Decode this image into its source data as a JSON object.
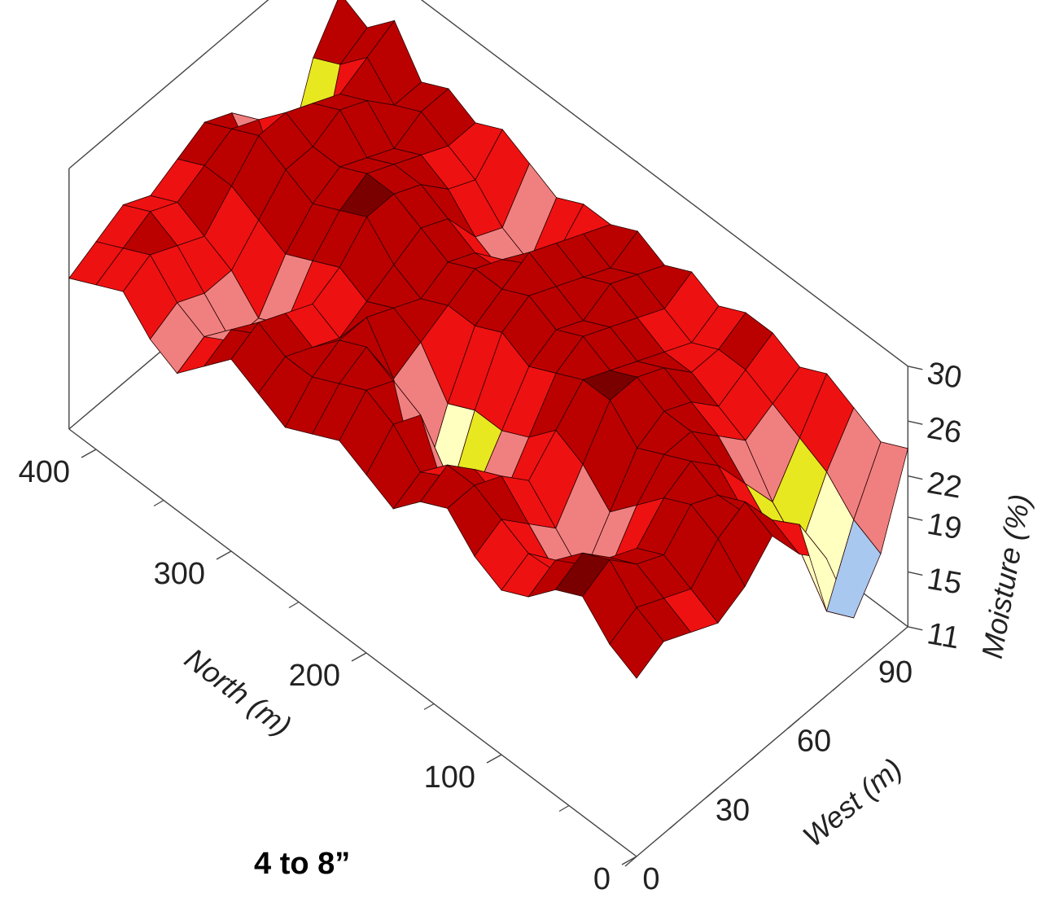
{
  "chart_data": {
    "type": "surface3d",
    "xlabel": "North (m)",
    "ylabel": "West (m)",
    "zlabel": "Moisture (%)",
    "x_ticks": [
      0,
      100,
      200,
      300,
      400
    ],
    "y_ticks": [
      0,
      30,
      60,
      90
    ],
    "z_ticks": [
      11,
      15,
      19,
      22,
      26,
      30
    ],
    "xlim": [
      0,
      420
    ],
    "ylim": [
      0,
      100
    ],
    "zlim": [
      11,
      30
    ],
    "colormap": [
      {
        "max": 15,
        "color": "#4040e0"
      },
      {
        "max": 17,
        "color": "#a8c8f0"
      },
      {
        "max": 19,
        "color": "#ffffc0"
      },
      {
        "max": 20.5,
        "color": "#e8e820"
      },
      {
        "max": 22,
        "color": "#f08080"
      },
      {
        "max": 24,
        "color": "#ee1111"
      },
      {
        "max": 26.5,
        "color": "#bb0000"
      },
      {
        "max": 30,
        "color": "#7a0000"
      }
    ],
    "grid_north": [
      0,
      20,
      40,
      60,
      80,
      100,
      120,
      140,
      160,
      180,
      200,
      220,
      240,
      260,
      280,
      300,
      320,
      340,
      360,
      380,
      400,
      420
    ],
    "grid_west": [
      0,
      10,
      20,
      30,
      40,
      50,
      60,
      70,
      80,
      90,
      100
    ],
    "moisture": [
      [
        24,
        25,
        24,
        23,
        24,
        26,
        23,
        21,
        15,
        18,
        24
      ],
      [
        25,
        26,
        25,
        24,
        26,
        27,
        24,
        22,
        14,
        19,
        23
      ],
      [
        27,
        28,
        26,
        25,
        27,
        26,
        23,
        20,
        17,
        21,
        24
      ],
      [
        26,
        27,
        25,
        24,
        26,
        27,
        25,
        22,
        19,
        22,
        25
      ],
      [
        24,
        25,
        23,
        21,
        24,
        26,
        26,
        24,
        22,
        23,
        24
      ],
      [
        23,
        24,
        21,
        19,
        22,
        25,
        26,
        25,
        23,
        24,
        25
      ],
      [
        24,
        25,
        23,
        21,
        24,
        27,
        27,
        26,
        24,
        24,
        25
      ],
      [
        26,
        26,
        25,
        23,
        25,
        27,
        26,
        25,
        24,
        23,
        24
      ],
      [
        25,
        26,
        24,
        20,
        23,
        26,
        27,
        26,
        25,
        24,
        25
      ],
      [
        23,
        24,
        22,
        19,
        22,
        25,
        26,
        25,
        26,
        25,
        24
      ],
      [
        24,
        26,
        25,
        17,
        22,
        26,
        27,
        26,
        25,
        24,
        25
      ],
      [
        25,
        27,
        26,
        16,
        21,
        25,
        26,
        27,
        26,
        25,
        24
      ],
      [
        24,
        26,
        27,
        23,
        24,
        25,
        26,
        25,
        23,
        22,
        24
      ],
      [
        23,
        25,
        26,
        26,
        25,
        24,
        25,
        24,
        21,
        20,
        23
      ],
      [
        24,
        25,
        24,
        23,
        24,
        25,
        26,
        25,
        22,
        21,
        24
      ],
      [
        25,
        26,
        25,
        24,
        25,
        27,
        27,
        26,
        24,
        23,
        25
      ],
      [
        23,
        24,
        22,
        21,
        24,
        26,
        27,
        26,
        25,
        24,
        24
      ],
      [
        21,
        22,
        20,
        20,
        23,
        25,
        26,
        25,
        24,
        25,
        25
      ],
      [
        22,
        23,
        22,
        22,
        24,
        26,
        26,
        27,
        26,
        24,
        24
      ],
      [
        24,
        25,
        24,
        23,
        25,
        27,
        27,
        26,
        25,
        26,
        27
      ],
      [
        23,
        24,
        25,
        24,
        25,
        26,
        25,
        17,
        16,
        24,
        25
      ],
      [
        22,
        23,
        24,
        23,
        24,
        25,
        24,
        18,
        17,
        23,
        26
      ]
    ]
  },
  "caption": "4 to 8”"
}
